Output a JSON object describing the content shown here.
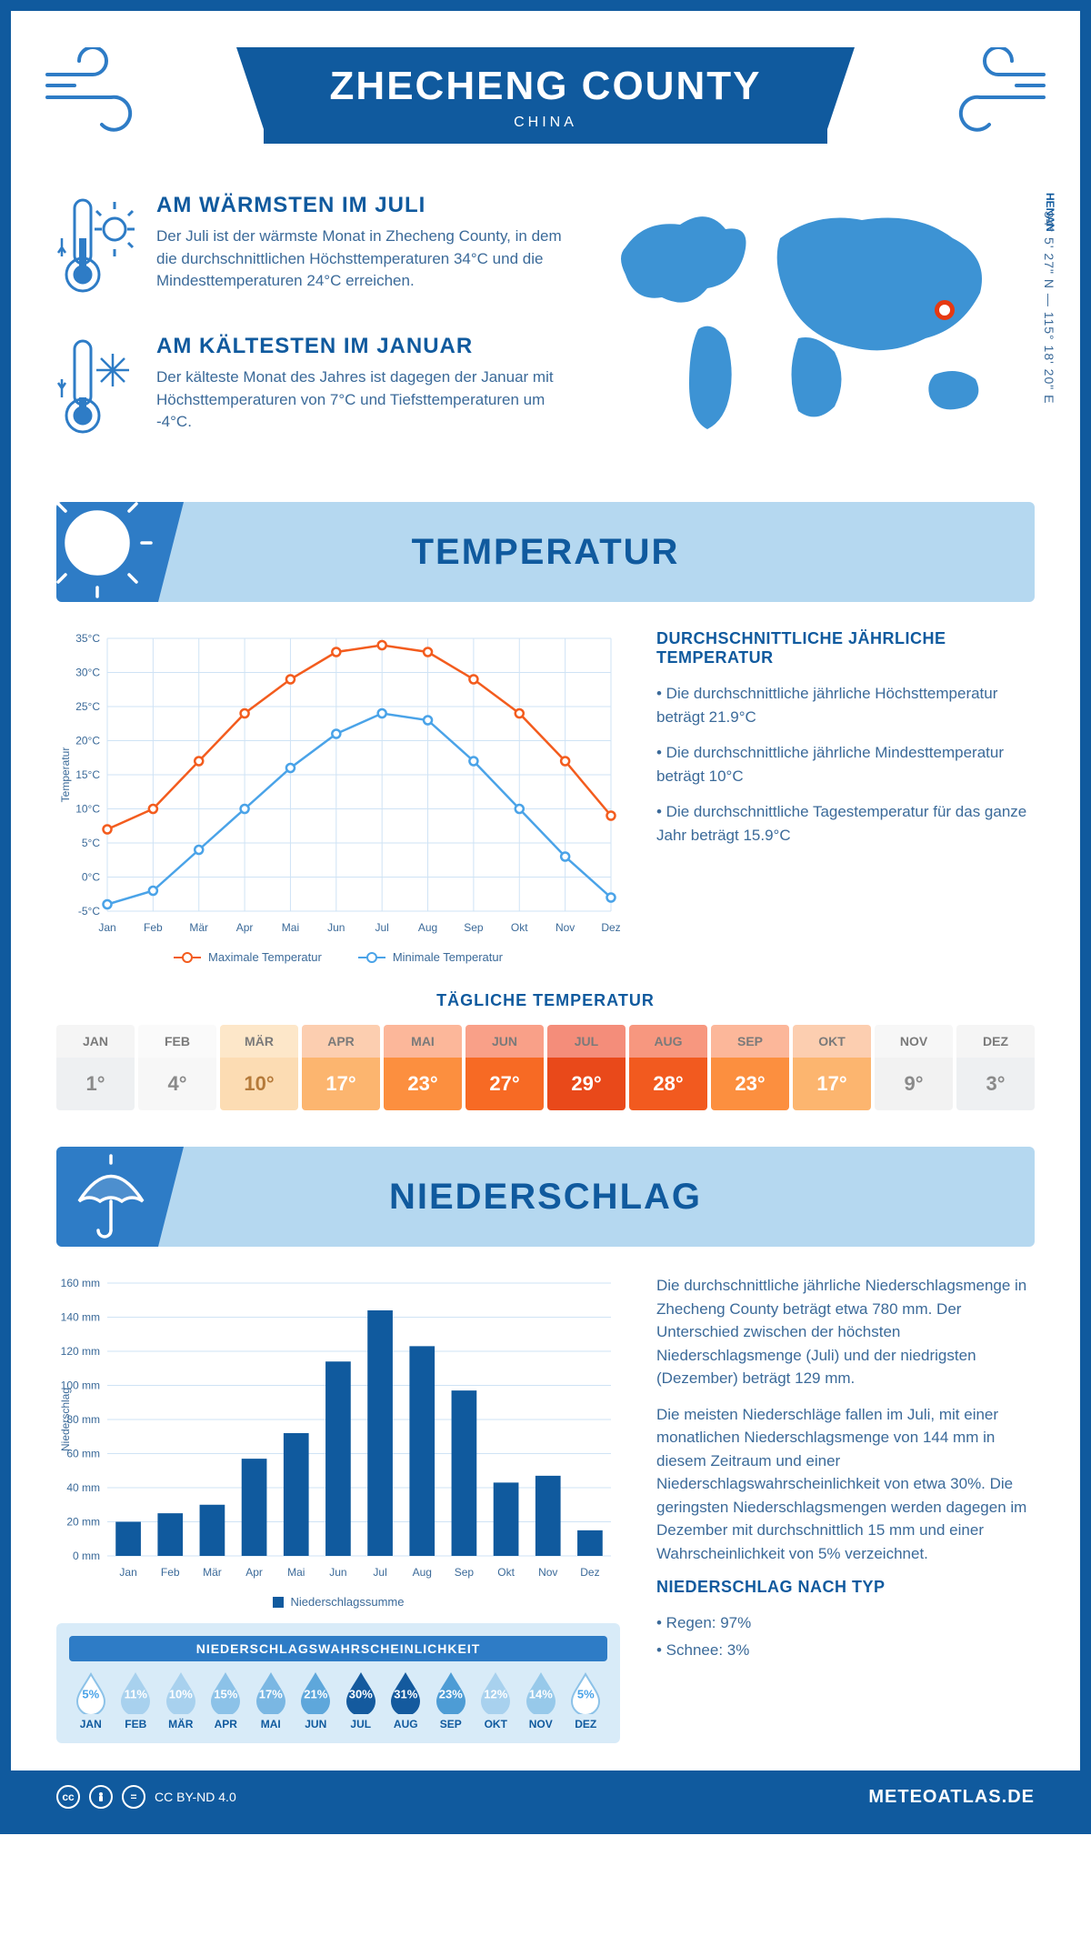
{
  "header": {
    "title": "ZHECHENG COUNTY",
    "subtitle": "CHINA"
  },
  "coords": {
    "text": "34° 5' 27\" N — 115° 18' 20\" E",
    "region": "HENAN"
  },
  "map_pin": {
    "left_pct": 77,
    "top_pct": 42
  },
  "warmest": {
    "title": "AM WÄRMSTEN IM JULI",
    "text": "Der Juli ist der wärmste Monat in Zhecheng County, in dem die durchschnittlichen Höchsttemperaturen 34°C und die Mindesttemperaturen 24°C erreichen."
  },
  "coldest": {
    "title": "AM KÄLTESTEN IM JANUAR",
    "text": "Der kälteste Monat des Jahres ist dagegen der Januar mit Höchsttemperaturen von 7°C und Tiefsttemperaturen um -4°C."
  },
  "temp_section": {
    "heading": "TEMPERATUR",
    "chart": {
      "months": [
        "Jan",
        "Feb",
        "Mär",
        "Apr",
        "Mai",
        "Jun",
        "Jul",
        "Aug",
        "Sep",
        "Okt",
        "Nov",
        "Dez"
      ],
      "max": [
        7,
        10,
        17,
        24,
        29,
        33,
        34,
        33,
        29,
        24,
        17,
        9
      ],
      "min": [
        -4,
        -2,
        4,
        10,
        16,
        21,
        24,
        23,
        17,
        10,
        3,
        -3
      ],
      "ylim": [
        -5,
        35
      ],
      "ytick": 5,
      "y_axis_label": "Temperatur",
      "color_max": "#f35c1e",
      "color_min": "#4aa3e8",
      "grid_color": "#cfe3f5",
      "bg": "#ffffff",
      "legend_max": "Maximale Temperatur",
      "legend_min": "Minimale Temperatur"
    },
    "summary": {
      "title": "DURCHSCHNITTLICHE JÄHRLICHE TEMPERATUR",
      "b1": "• Die durchschnittliche jährliche Höchsttemperatur beträgt 21.9°C",
      "b2": "• Die durchschnittliche jährliche Mindesttemperatur beträgt 10°C",
      "b3": "• Die durchschnittliche Tagestemperatur für das ganze Jahr beträgt 15.9°C"
    },
    "daily": {
      "title": "TÄGLICHE TEMPERATUR",
      "months": [
        "JAN",
        "FEB",
        "MÄR",
        "APR",
        "MAI",
        "JUN",
        "JUL",
        "AUG",
        "SEP",
        "OKT",
        "NOV",
        "DEZ"
      ],
      "values": [
        "1°",
        "4°",
        "10°",
        "17°",
        "23°",
        "27°",
        "29°",
        "28°",
        "23°",
        "17°",
        "9°",
        "3°"
      ],
      "bg": [
        "#eef0f2",
        "#f7f7f7",
        "#fcdcb3",
        "#fcb56f",
        "#fc8f3f",
        "#f76a24",
        "#e9491a",
        "#f25a1f",
        "#fc8f3f",
        "#fcb56f",
        "#f2f2f2",
        "#eef0f2"
      ],
      "fg": [
        "#8a8a8a",
        "#8a8a8a",
        "#b57a3a",
        "#ffffff",
        "#ffffff",
        "#ffffff",
        "#ffffff",
        "#ffffff",
        "#ffffff",
        "#ffffff",
        "#8a8a8a",
        "#8a8a8a"
      ],
      "head_bg": [
        "#f5f5f5",
        "#fafafa",
        "#fde7c9",
        "#fcceb0",
        "#fcb79a",
        "#f9a088",
        "#f48d7a",
        "#f7977f",
        "#fcb79a",
        "#fcceb0",
        "#f7f7f7",
        "#f5f5f5"
      ]
    }
  },
  "precip_section": {
    "heading": "NIEDERSCHLAG",
    "chart": {
      "months": [
        "Jan",
        "Feb",
        "Mär",
        "Apr",
        "Mai",
        "Jun",
        "Jul",
        "Aug",
        "Sep",
        "Okt",
        "Nov",
        "Dez"
      ],
      "values": [
        20,
        25,
        30,
        57,
        72,
        114,
        144,
        123,
        97,
        43,
        47,
        15
      ],
      "ylim": [
        0,
        160
      ],
      "ytick": 20,
      "y_axis_label": "Niederschlag",
      "bar_color": "#105a9e",
      "grid_color": "#cfe3f5",
      "legend": "Niederschlagssumme"
    },
    "prob": {
      "title": "NIEDERSCHLAGSWAHRSCHEINLICHKEIT",
      "months": [
        "JAN",
        "FEB",
        "MÄR",
        "APR",
        "MAI",
        "JUN",
        "JUL",
        "AUG",
        "SEP",
        "OKT",
        "NOV",
        "DEZ"
      ],
      "values": [
        "5%",
        "11%",
        "10%",
        "15%",
        "17%",
        "21%",
        "30%",
        "31%",
        "23%",
        "12%",
        "14%",
        "5%"
      ],
      "fills": [
        "#ffffff",
        "#a8d1ee",
        "#a8d1ee",
        "#8cc2e8",
        "#7ab7e3",
        "#5ea7db",
        "#145a9e",
        "#145a9e",
        "#4d9cd5",
        "#a8d1ee",
        "#97c9ea",
        "#ffffff"
      ],
      "text_colors": [
        "#4aa3e8",
        "#ffffff",
        "#ffffff",
        "#ffffff",
        "#ffffff",
        "#ffffff",
        "#ffffff",
        "#ffffff",
        "#ffffff",
        "#ffffff",
        "#ffffff",
        "#4aa3e8"
      ]
    },
    "text": {
      "p1": "Die durchschnittliche jährliche Niederschlagsmenge in Zhecheng County beträgt etwa 780 mm. Der Unterschied zwischen der höchsten Niederschlagsmenge (Juli) und der niedrigsten (Dezember) beträgt 129 mm.",
      "p2": "Die meisten Niederschläge fallen im Juli, mit einer monatlichen Niederschlagsmenge von 144 mm in diesem Zeitraum und einer Niederschlagswahrscheinlichkeit von etwa 30%. Die geringsten Niederschlagsmengen werden dagegen im Dezember mit durchschnittlich 15 mm und einer Wahrscheinlichkeit von 5% verzeichnet.",
      "type_title": "NIEDERSCHLAG NACH TYP",
      "type_1": "• Regen: 97%",
      "type_2": "• Schnee: 3%"
    }
  },
  "footer": {
    "license": "CC BY-ND 4.0",
    "brand": "METEOATLAS.DE"
  }
}
